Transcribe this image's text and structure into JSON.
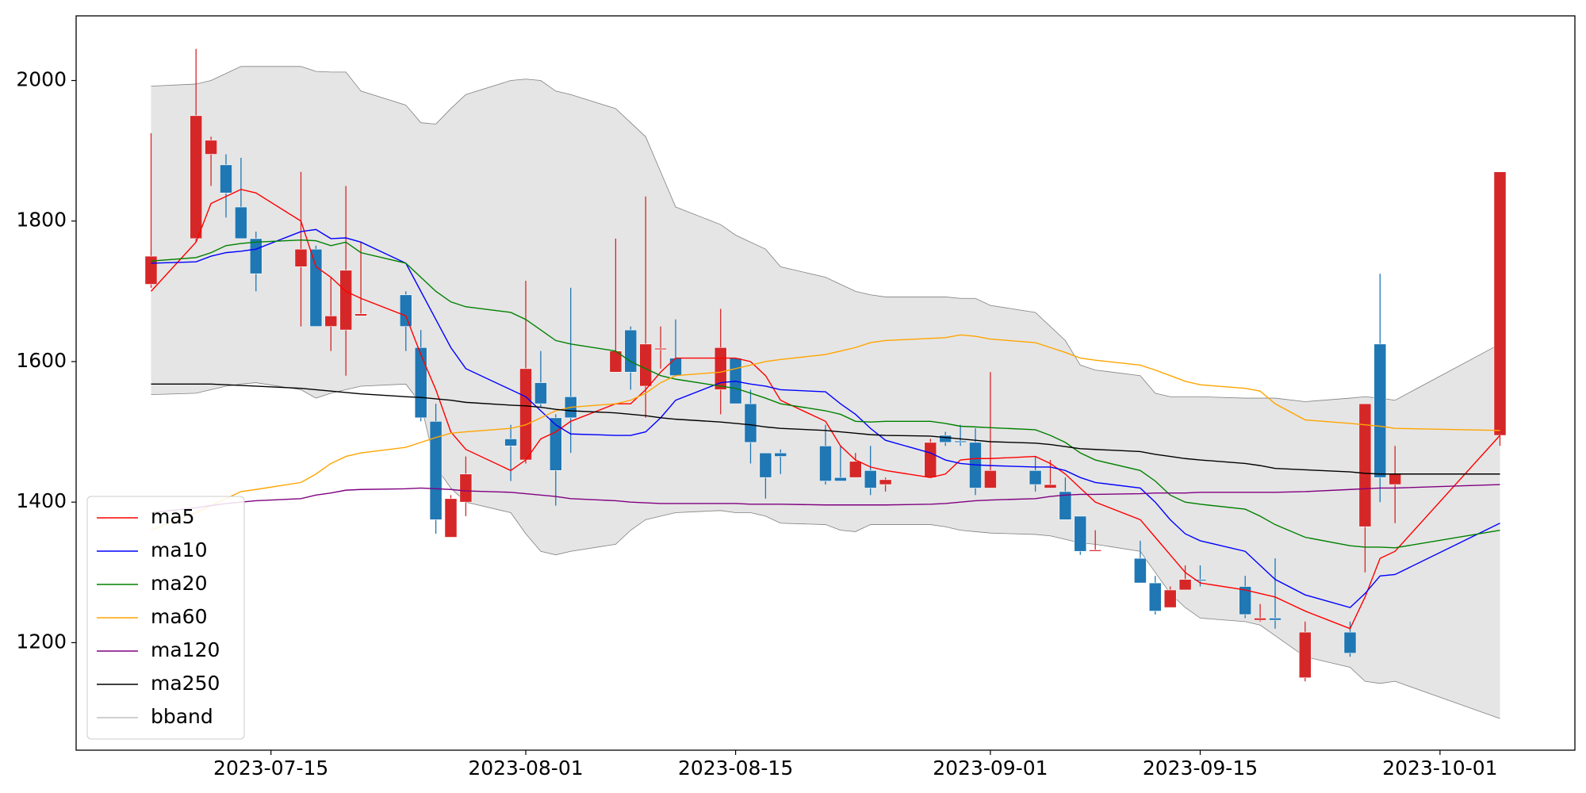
{
  "chart_data": {
    "type": "candlestick",
    "x": [
      "2023-07-07",
      "2023-07-10",
      "2023-07-11",
      "2023-07-12",
      "2023-07-13",
      "2023-07-14",
      "2023-07-17",
      "2023-07-18",
      "2023-07-19",
      "2023-07-20",
      "2023-07-21",
      "2023-07-24",
      "2023-07-25",
      "2023-07-26",
      "2023-07-27",
      "2023-07-28",
      "2023-07-31",
      "2023-08-01",
      "2023-08-02",
      "2023-08-03",
      "2023-08-04",
      "2023-08-07",
      "2023-08-08",
      "2023-08-09",
      "2023-08-10",
      "2023-08-11",
      "2023-08-14",
      "2023-08-15",
      "2023-08-16",
      "2023-08-17",
      "2023-08-18",
      "2023-08-21",
      "2023-08-22",
      "2023-08-23",
      "2023-08-24",
      "2023-08-25",
      "2023-08-28",
      "2023-08-29",
      "2023-08-30",
      "2023-08-31",
      "2023-09-01",
      "2023-09-04",
      "2023-09-05",
      "2023-09-06",
      "2023-09-07",
      "2023-09-08",
      "2023-09-11",
      "2023-09-12",
      "2023-09-13",
      "2023-09-14",
      "2023-09-15",
      "2023-09-18",
      "2023-09-19",
      "2023-09-20",
      "2023-09-22",
      "2023-09-25",
      "2023-09-26",
      "2023-09-27",
      "2023-09-28",
      "2023-10-05"
    ],
    "up_color": "#d62728",
    "down_color": "#1f77b4",
    "open": [
      1710,
      1775,
      1895,
      1880,
      1820,
      1775,
      1735,
      1760,
      1650,
      1645,
      1665,
      1695,
      1620,
      1515,
      1350,
      1400,
      1490,
      1460,
      1570,
      1520,
      1550,
      1585,
      1645,
      1565,
      1617,
      1605,
      1560,
      1605,
      1540,
      1470,
      1470,
      1480,
      1435,
      1435,
      1445,
      1425,
      1435,
      1495,
      1487,
      1485,
      1420,
      1445,
      1420,
      1415,
      1380,
      1330,
      1320,
      1285,
      1250,
      1275,
      1290,
      1280,
      1232,
      1235,
      1150,
      1215,
      1365,
      1625,
      1425,
      1495
    ],
    "high": [
      1925,
      2045,
      1920,
      1895,
      1890,
      1785,
      1870,
      1765,
      1720,
      1850,
      1770,
      1700,
      1645,
      1540,
      1410,
      1465,
      1510,
      1715,
      1615,
      1525,
      1705,
      1775,
      1650,
      1835,
      1650,
      1660,
      1675,
      1605,
      1560,
      1470,
      1475,
      1510,
      1480,
      1470,
      1480,
      1435,
      1490,
      1500,
      1510,
      1505,
      1585,
      1465,
      1460,
      1435,
      1380,
      1360,
      1345,
      1295,
      1280,
      1310,
      1310,
      1295,
      1255,
      1320,
      1230,
      1230,
      1540,
      1725,
      1480,
      1870
    ],
    "low": [
      1705,
      1770,
      1850,
      1805,
      1775,
      1700,
      1650,
      1650,
      1615,
      1580,
      1665,
      1615,
      1515,
      1355,
      1350,
      1380,
      1430,
      1455,
      1535,
      1395,
      1470,
      1585,
      1560,
      1520,
      1590,
      1580,
      1525,
      1540,
      1455,
      1405,
      1440,
      1425,
      1430,
      1435,
      1410,
      1415,
      1435,
      1480,
      1480,
      1410,
      1420,
      1415,
      1420,
      1375,
      1325,
      1330,
      1285,
      1240,
      1250,
      1275,
      1280,
      1235,
      1230,
      1220,
      1145,
      1180,
      1300,
      1400,
      1370,
      1480
    ],
    "close": [
      1750,
      1950,
      1915,
      1840,
      1775,
      1725,
      1760,
      1650,
      1665,
      1730,
      1668,
      1650,
      1520,
      1375,
      1405,
      1440,
      1480,
      1590,
      1540,
      1445,
      1520,
      1615,
      1585,
      1625,
      1619,
      1580,
      1620,
      1540,
      1485,
      1435,
      1465,
      1430,
      1430,
      1458,
      1420,
      1432,
      1485,
      1485,
      1485,
      1420,
      1445,
      1425,
      1425,
      1375,
      1330,
      1332,
      1285,
      1245,
      1275,
      1290,
      1288,
      1240,
      1235,
      1232,
      1215,
      1185,
      1540,
      1435,
      1440,
      1870
    ],
    "series": [
      {
        "name": "ma5",
        "color": "#ff0000",
        "values": [
          1700,
          1770,
          1825,
          1835,
          1845,
          1840,
          1800,
          1735,
          1720,
          1700,
          1690,
          1665,
          1610,
          1560,
          1500,
          1475,
          1445,
          1460,
          1490,
          1500,
          1515,
          1540,
          1540,
          1560,
          1585,
          1605,
          1605,
          1605,
          1600,
          1580,
          1545,
          1515,
          1480,
          1460,
          1450,
          1445,
          1435,
          1440,
          1460,
          1462,
          1462,
          1465,
          1455,
          1440,
          1420,
          1400,
          1375,
          1350,
          1325,
          1300,
          1285,
          1275,
          1270,
          1265,
          1245,
          1220,
          1265,
          1320,
          1330,
          1495
        ]
      },
      {
        "name": "ma10",
        "color": "#0000ff",
        "values": [
          1740,
          1742,
          1750,
          1755,
          1757,
          1760,
          1785,
          1788,
          1775,
          1776,
          1770,
          1740,
          1700,
          1660,
          1620,
          1590,
          1560,
          1550,
          1530,
          1510,
          1497,
          1495,
          1495,
          1500,
          1520,
          1545,
          1570,
          1572,
          1568,
          1565,
          1560,
          1557,
          1540,
          1525,
          1505,
          1488,
          1470,
          1460,
          1455,
          1453,
          1452,
          1450,
          1450,
          1445,
          1435,
          1428,
          1420,
          1400,
          1375,
          1355,
          1345,
          1330,
          1310,
          1290,
          1268,
          1250,
          1270,
          1295,
          1297,
          1370
        ]
      },
      {
        "name": "ma20",
        "color": "#008000",
        "values": [
          1743,
          1748,
          1755,
          1765,
          1768,
          1770,
          1773,
          1772,
          1765,
          1770,
          1755,
          1740,
          1720,
          1700,
          1685,
          1678,
          1670,
          1660,
          1645,
          1630,
          1625,
          1615,
          1600,
          1590,
          1580,
          1575,
          1565,
          1562,
          1555,
          1548,
          1540,
          1530,
          1525,
          1515,
          1514,
          1515,
          1515,
          1512,
          1508,
          1507,
          1506,
          1503,
          1495,
          1485,
          1470,
          1460,
          1445,
          1430,
          1410,
          1400,
          1397,
          1390,
          1380,
          1368,
          1350,
          1338,
          1336,
          1336,
          1335,
          1360
        ]
      },
      {
        "name": "ma60",
        "color": "#ffa500",
        "values": [
          1360,
          1385,
          1395,
          1405,
          1415,
          1418,
          1428,
          1440,
          1455,
          1465,
          1470,
          1478,
          1485,
          1492,
          1498,
          1500,
          1505,
          1510,
          1520,
          1530,
          1535,
          1540,
          1545,
          1555,
          1570,
          1580,
          1585,
          1590,
          1595,
          1600,
          1603,
          1610,
          1615,
          1620,
          1627,
          1630,
          1633,
          1634,
          1638,
          1636,
          1632,
          1627,
          1620,
          1613,
          1605,
          1602,
          1595,
          1588,
          1580,
          1572,
          1567,
          1562,
          1558,
          1540,
          1517,
          1512,
          1510,
          1508,
          1505,
          1502
        ]
      },
      {
        "name": "ma120",
        "color": "#800080",
        "values": [
          1385,
          1392,
          1395,
          1398,
          1400,
          1402,
          1405,
          1410,
          1413,
          1417,
          1418,
          1419,
          1420,
          1419,
          1418,
          1416,
          1414,
          1412,
          1410,
          1408,
          1405,
          1402,
          1400,
          1399,
          1398,
          1398,
          1398,
          1398,
          1397,
          1397,
          1397,
          1396,
          1396,
          1396,
          1396,
          1396,
          1397,
          1398,
          1400,
          1402,
          1403,
          1405,
          1408,
          1410,
          1411,
          1411,
          1412,
          1413,
          1413,
          1413,
          1414,
          1414,
          1414,
          1414,
          1415,
          1418,
          1419,
          1420,
          1420,
          1425
        ]
      },
      {
        "name": "ma250",
        "color": "#000000",
        "values": [
          1568,
          1568,
          1568,
          1567,
          1566,
          1565,
          1562,
          1560,
          1558,
          1556,
          1554,
          1550,
          1549,
          1547,
          1545,
          1542,
          1538,
          1537,
          1535,
          1532,
          1530,
          1527,
          1525,
          1523,
          1520,
          1518,
          1514,
          1512,
          1510,
          1507,
          1505,
          1502,
          1500,
          1498,
          1496,
          1495,
          1494,
          1492,
          1490,
          1488,
          1486,
          1484,
          1482,
          1479,
          1476,
          1475,
          1472,
          1468,
          1465,
          1462,
          1460,
          1455,
          1452,
          1448,
          1446,
          1443,
          1441,
          1440,
          1440,
          1440
        ]
      }
    ],
    "band": {
      "name": "bband",
      "color": "#808080",
      "fill": "#e5e5e5",
      "upper": [
        1992,
        1995,
        2000,
        2010,
        2020,
        2020,
        2020,
        2013,
        2012,
        2012,
        1985,
        1965,
        1940,
        1938,
        1960,
        1980,
        2000,
        2002,
        2000,
        1985,
        1980,
        1960,
        1940,
        1920,
        1870,
        1820,
        1795,
        1780,
        1770,
        1760,
        1735,
        1720,
        1710,
        1700,
        1695,
        1692,
        1692,
        1692,
        1690,
        1690,
        1680,
        1670,
        1650,
        1630,
        1595,
        1588,
        1580,
        1555,
        1550,
        1550,
        1550,
        1548,
        1548,
        1548,
        1543,
        1548,
        1550,
        1548,
        1545,
        1625
      ],
      "lower": [
        1553,
        1555,
        1560,
        1565,
        1568,
        1570,
        1560,
        1548,
        1555,
        1560,
        1565,
        1568,
        1540,
        1450,
        1420,
        1400,
        1385,
        1355,
        1330,
        1325,
        1330,
        1340,
        1360,
        1375,
        1380,
        1385,
        1388,
        1385,
        1385,
        1380,
        1370,
        1368,
        1360,
        1358,
        1368,
        1368,
        1368,
        1365,
        1360,
        1358,
        1356,
        1354,
        1352,
        1347,
        1342,
        1340,
        1330,
        1300,
        1270,
        1250,
        1235,
        1230,
        1225,
        1210,
        1180,
        1165,
        1145,
        1142,
        1145,
        1092
      ]
    },
    "xlim": [
      "2023-07-02",
      "2023-10-10"
    ],
    "xticks": [
      "2023-07-15",
      "2023-08-01",
      "2023-08-15",
      "2023-09-01",
      "2023-09-15",
      "2023-10-01"
    ],
    "ylim": [
      1047,
      2092
    ],
    "yticks": [
      1200,
      1400,
      1600,
      1800,
      2000
    ],
    "legend": "lower left"
  }
}
